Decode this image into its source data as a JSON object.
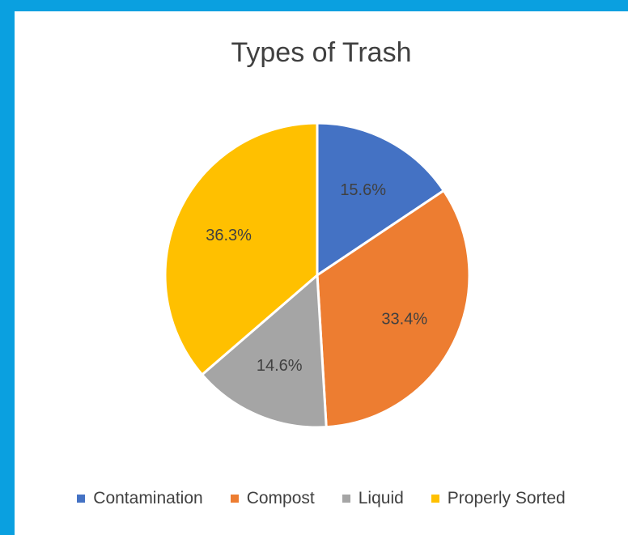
{
  "chart_data": {
    "type": "pie",
    "title": "Types of Trash",
    "categories": [
      "Contamination",
      "Compost",
      "Liquid",
      "Properly Sorted"
    ],
    "values": [
      15.6,
      33.4,
      14.6,
      36.3
    ],
    "labels": [
      "15.6%",
      "33.4%",
      "14.6%",
      "36.3%"
    ],
    "colors": [
      "#4472c4",
      "#ed7d31",
      "#a5a5a5",
      "#ffc000"
    ],
    "legend_position": "bottom"
  }
}
